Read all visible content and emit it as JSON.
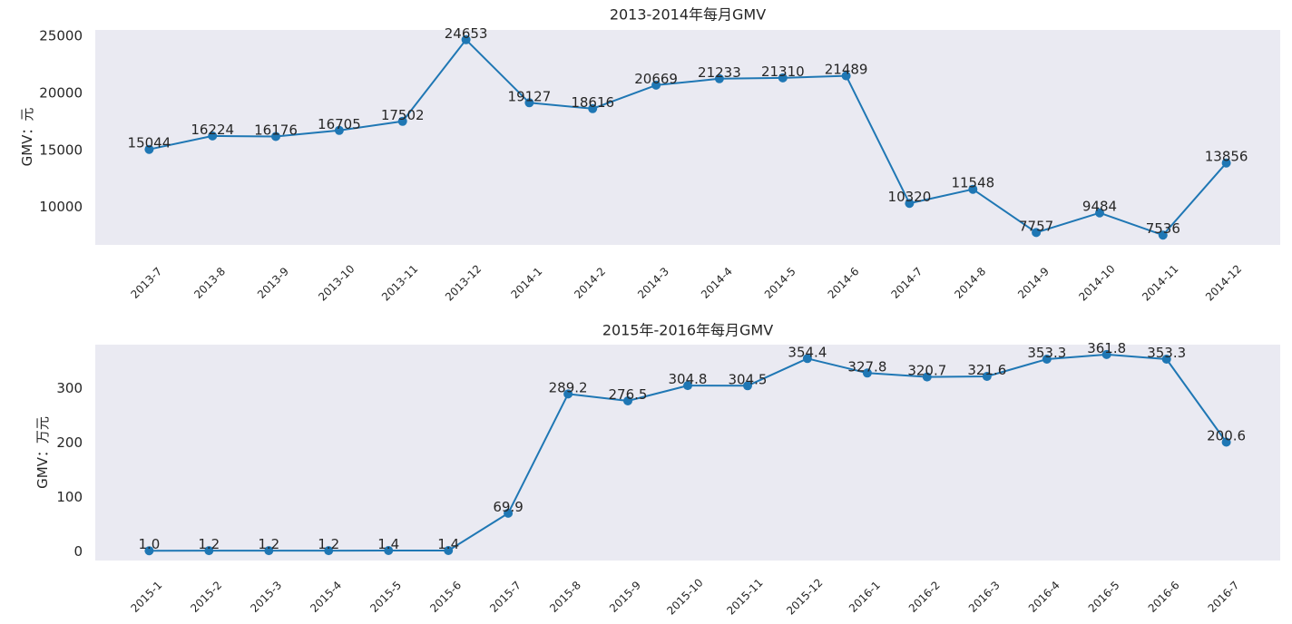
{
  "chart_data": [
    {
      "type": "line",
      "title": "2013-2014年每月GMV",
      "xlabel": "",
      "ylabel": "GMV：元",
      "categories": [
        "2013-7",
        "2013-8",
        "2013-9",
        "2013-10",
        "2013-11",
        "2013-12",
        "2014-1",
        "2014-2",
        "2014-3",
        "2014-4",
        "2014-5",
        "2014-6",
        "2014-7",
        "2014-8",
        "2014-9",
        "2014-10",
        "2014-11",
        "2014-12"
      ],
      "values": [
        15044,
        16224,
        16176,
        16705,
        17502,
        24653,
        19127,
        18616,
        20669,
        21233,
        21310,
        21489,
        10320,
        11548,
        7757,
        9484,
        7536,
        13856
      ],
      "data_labels": [
        "15044",
        "16224",
        "16176",
        "16705",
        "17502",
        "24653",
        "19127",
        "18616",
        "20669",
        "21233",
        "21310",
        "21489",
        "10320",
        "11548",
        "7757",
        "9484",
        "7536",
        "13856"
      ],
      "yticks": [
        10000,
        15000,
        20000,
        25000
      ],
      "ylim": [
        6680,
        25509
      ],
      "grid": false,
      "line_color": "#1f77b4",
      "plot_bg": "#eaeaf2"
    },
    {
      "type": "line",
      "title": "2015年-2016年每月GMV",
      "xlabel": "",
      "ylabel": "GMV：万元",
      "categories": [
        "2015-1",
        "2015-2",
        "2015-3",
        "2015-4",
        "2015-5",
        "2015-6",
        "2015-7",
        "2015-8",
        "2015-9",
        "2015-10",
        "2015-11",
        "2015-12",
        "2016-1",
        "2016-2",
        "2016-3",
        "2016-4",
        "2016-5",
        "2016-6",
        "2016-7"
      ],
      "values": [
        1.0,
        1.2,
        1.2,
        1.2,
        1.4,
        1.4,
        69.9,
        289.2,
        276.5,
        304.8,
        304.5,
        354.4,
        327.8,
        320.7,
        321.6,
        353.3,
        361.8,
        353.3,
        200.6
      ],
      "data_labels": [
        "1.0",
        "1.2",
        "1.2",
        "1.2",
        "1.4",
        "1.4",
        "69.9",
        "289.2",
        "276.5",
        "304.8",
        "304.5",
        "354.4",
        "327.8",
        "320.7",
        "321.6",
        "353.3",
        "361.8",
        "353.3",
        "200.6"
      ],
      "yticks": [
        0,
        100,
        200,
        300
      ],
      "ylim": [
        -17,
        380
      ],
      "grid": false,
      "line_color": "#1f77b4",
      "plot_bg": "#eaeaf2"
    }
  ]
}
